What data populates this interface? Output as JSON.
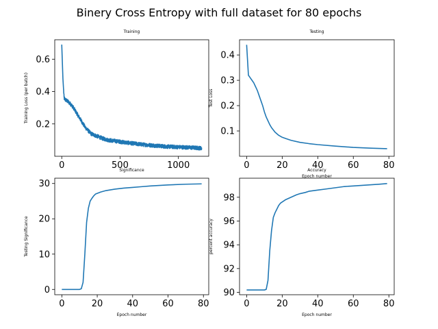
{
  "figure": {
    "suptitle": "Binery Cross Entropy with full dataset for 80 epochs",
    "line_color": "#1f77b4"
  },
  "chart_data": [
    {
      "type": "line",
      "title": "Training",
      "xlabel": "",
      "ylabel": "Training Loss (per batch)",
      "xlim": [
        -60,
        1260
      ],
      "ylim": [
        0.0,
        0.72
      ],
      "xticks": [
        0,
        500,
        1000
      ],
      "xtick_labels": [
        "0",
        "500",
        "1000"
      ],
      "yticks": [
        0.2,
        0.4,
        0.6
      ],
      "ytick_labels": [
        "0.2",
        "0.4",
        "0.6"
      ],
      "grid": false,
      "noise_amplitude": 0.012,
      "x": [
        0,
        10,
        20,
        30,
        50,
        80,
        100,
        150,
        200,
        250,
        300,
        350,
        400,
        500,
        600,
        700,
        800,
        900,
        1000,
        1100,
        1200
      ],
      "y": [
        0.69,
        0.48,
        0.36,
        0.35,
        0.34,
        0.32,
        0.3,
        0.24,
        0.18,
        0.14,
        0.125,
        0.11,
        0.1,
        0.09,
        0.08,
        0.072,
        0.066,
        0.06,
        0.057,
        0.054,
        0.05
      ]
    },
    {
      "type": "line",
      "title": "Testing",
      "xlabel": "Epoch number",
      "ylabel": "Test Loss",
      "xlim": [
        -4,
        83
      ],
      "ylim": [
        0.0,
        0.46
      ],
      "xticks": [
        0,
        20,
        40,
        60,
        80
      ],
      "xtick_labels": [
        "0",
        "20",
        "40",
        "60",
        "80"
      ],
      "yticks": [
        0.1,
        0.2,
        0.3,
        0.4
      ],
      "ytick_labels": [
        "0.1",
        "0.2",
        "0.3",
        "0.4"
      ],
      "grid": false,
      "x": [
        0,
        1,
        2,
        3,
        4,
        5,
        6,
        7,
        8,
        9,
        10,
        11,
        12,
        13,
        14,
        16,
        18,
        20,
        22,
        25,
        30,
        35,
        40,
        50,
        60,
        70,
        79
      ],
      "y": [
        0.44,
        0.32,
        0.31,
        0.3,
        0.29,
        0.275,
        0.26,
        0.24,
        0.22,
        0.2,
        0.175,
        0.155,
        0.14,
        0.125,
        0.113,
        0.095,
        0.083,
        0.075,
        0.07,
        0.063,
        0.055,
        0.05,
        0.046,
        0.04,
        0.035,
        0.032,
        0.03
      ]
    },
    {
      "type": "line",
      "title": "Significance",
      "xlabel": "Epoch number",
      "ylabel": "Testing Significance",
      "xlim": [
        -4,
        83
      ],
      "ylim": [
        -1.5,
        31.5
      ],
      "xticks": [
        0,
        20,
        40,
        60,
        80
      ],
      "xtick_labels": [
        "0",
        "20",
        "40",
        "60",
        "80"
      ],
      "yticks": [
        0,
        10,
        20,
        30
      ],
      "ytick_labels": [
        "0",
        "10",
        "20",
        "30"
      ],
      "grid": false,
      "x": [
        0,
        5,
        10,
        11,
        12,
        13,
        14,
        15,
        16,
        17,
        18,
        19,
        20,
        22,
        25,
        30,
        35,
        40,
        45,
        50,
        60,
        70,
        79
      ],
      "y": [
        0,
        0,
        0,
        0.2,
        2,
        10,
        19,
        23,
        25,
        25.8,
        26.5,
        27,
        27.2,
        27.6,
        28,
        28.4,
        28.7,
        28.9,
        29.1,
        29.3,
        29.6,
        29.8,
        29.9
      ]
    },
    {
      "type": "line",
      "title": "Accuracy",
      "xlabel": "Epoch number",
      "ylabel": "percent accuracy",
      "xlim": [
        -4,
        83
      ],
      "ylim": [
        89.8,
        99.6
      ],
      "xticks": [
        0,
        20,
        40,
        60,
        80
      ],
      "xtick_labels": [
        "0",
        "20",
        "40",
        "60",
        "80"
      ],
      "yticks": [
        90,
        92,
        94,
        96,
        98
      ],
      "ytick_labels": [
        "90",
        "92",
        "94",
        "96",
        "98"
      ],
      "grid": false,
      "x": [
        0,
        5,
        10,
        11,
        12,
        13,
        14,
        15,
        16,
        17,
        18,
        19,
        20,
        22,
        25,
        28,
        30,
        33,
        35,
        40,
        45,
        50,
        55,
        60,
        65,
        70,
        75,
        79
      ],
      "y": [
        90.2,
        90.2,
        90.2,
        90.25,
        91,
        93.5,
        95.2,
        96.3,
        96.7,
        97,
        97.3,
        97.5,
        97.6,
        97.8,
        98,
        98.2,
        98.3,
        98.4,
        98.5,
        98.6,
        98.7,
        98.8,
        98.9,
        98.95,
        99.0,
        99.05,
        99.1,
        99.15
      ]
    }
  ]
}
